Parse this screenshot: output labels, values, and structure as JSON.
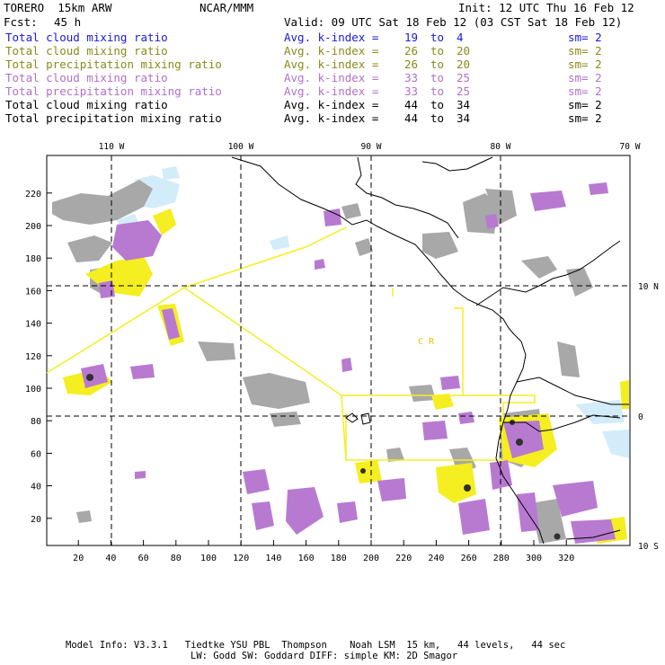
{
  "header": {
    "model": "TORERO  15km ARW",
    "org": "NCAR/MMM",
    "init": "Init: 12 UTC Thu 16 Feb 12",
    "fcst_label": "Fcst:",
    "fcst_value": "45 h",
    "valid": "Valid: 09 UTC Sat 18 Feb 12 (03 CST Sat 18 Feb 12)"
  },
  "legend": [
    {
      "field": "Total cloud mixing ratio",
      "kindex": "Avg. k-index =",
      "from": "19",
      "to_word": "to",
      "to": "4",
      "sm": "sm= 2",
      "color": "#1a1ad6"
    },
    {
      "field": "Total cloud mixing ratio",
      "kindex": "Avg. k-index =",
      "from": "26",
      "to_word": "to",
      "to": "20",
      "sm": "sm= 2",
      "color": "#8a8a1a"
    },
    {
      "field": "Total precipitation mixing ratio",
      "kindex": "Avg. k-index =",
      "from": "26",
      "to_word": "to",
      "to": "20",
      "sm": "sm= 2",
      "color": "#8a8a1a"
    },
    {
      "field": "Total cloud mixing ratio",
      "kindex": "Avg. k-index =",
      "from": "33",
      "to_word": "to",
      "to": "25",
      "sm": "sm= 2",
      "color": "#b070c8"
    },
    {
      "field": "Total precipitation mixing ratio",
      "kindex": "Avg. k-index =",
      "from": "33",
      "to_word": "to",
      "to": "25",
      "sm": "sm= 2",
      "color": "#b070c8"
    },
    {
      "field": "Total cloud mixing ratio",
      "kindex": "Avg. k-index =",
      "from": "44",
      "to_word": "to",
      "to": "34",
      "sm": "sm= 2",
      "color": "#000000"
    },
    {
      "field": "Total precipitation mixing ratio",
      "kindex": "Avg. k-index =",
      "from": "44",
      "to_word": "to",
      "to": "34",
      "sm": "sm= 2",
      "color": "#000000"
    }
  ],
  "map": {
    "lon_labels": [
      "110 W",
      "100 W",
      "90 W",
      "80 W",
      "70 W"
    ],
    "lat_labels": [
      "10 N",
      "0",
      "10 S"
    ],
    "y_ticks": [
      "20",
      "40",
      "60",
      "80",
      "100",
      "120",
      "140",
      "160",
      "180",
      "200",
      "220"
    ],
    "x_ticks": [
      "20",
      "40",
      "60",
      "80",
      "100",
      "120",
      "140",
      "160",
      "180",
      "200",
      "220",
      "240",
      "260",
      "280",
      "300",
      "320"
    ],
    "region_label": "C R",
    "colors": {
      "gray_light": "#a8a8a8",
      "gray_mid": "#8c8c8c",
      "purple": "#b87ad0",
      "yellow": "#f5ee20",
      "light_blue": "#d2ecfa",
      "box_yellow": "#f5ee20"
    }
  },
  "footer": {
    "line1": "Model Info: V3.3.1   Tiedtke YSU PBL  Thompson    Noah LSM  15 km,   44 levels,   44 sec",
    "line2": "LW: Godd SW: Goddard DIFF: simple KM: 2D Smagor"
  }
}
